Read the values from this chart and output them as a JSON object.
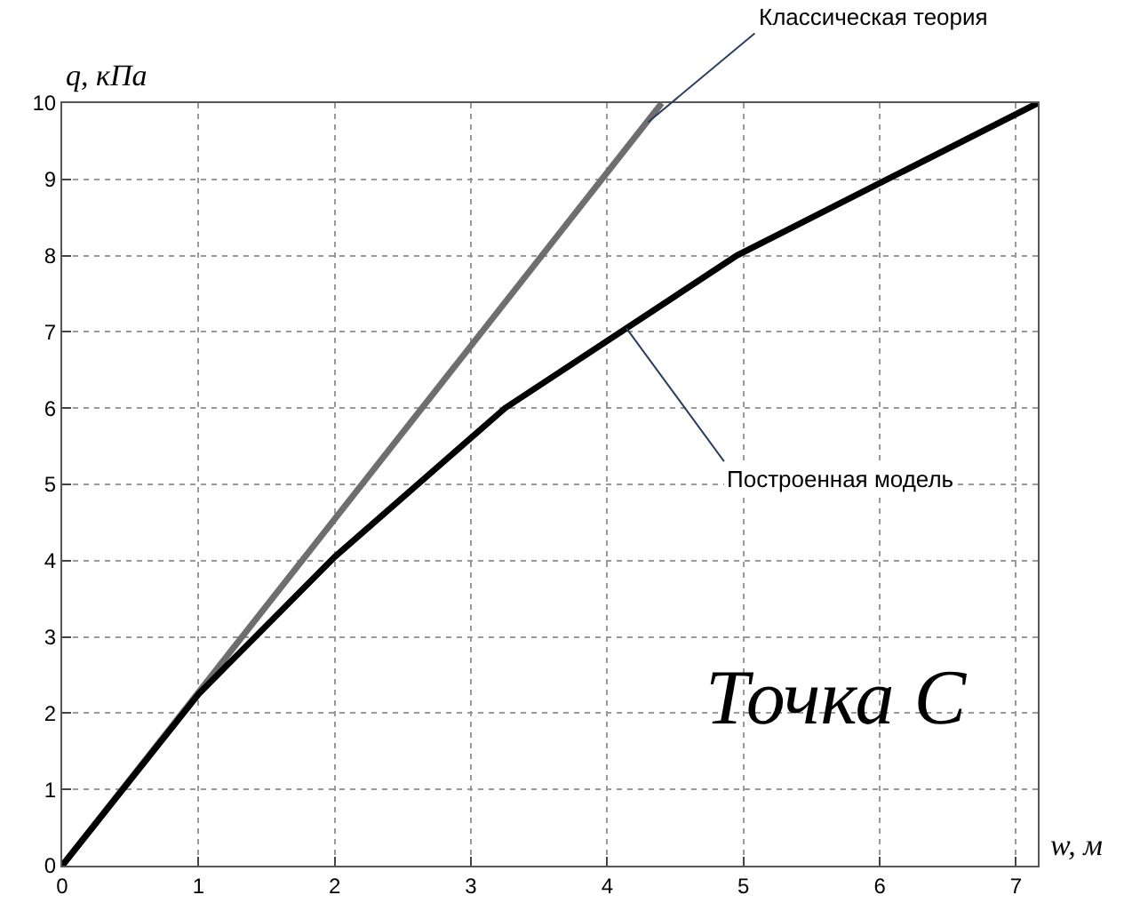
{
  "chart_data": {
    "type": "line",
    "xlabel": "w, м",
    "ylabel": "q, кПа",
    "xlim": [
      0,
      7.16
    ],
    "ylim": [
      0,
      10
    ],
    "xticks": [
      0,
      1,
      2,
      3,
      4,
      5,
      6,
      7
    ],
    "yticks": [
      0,
      1,
      2,
      3,
      4,
      5,
      6,
      7,
      8,
      9,
      10
    ],
    "grid": true,
    "marker": "none",
    "line_style": "solid",
    "series": [
      {
        "color": "#6e6e6e",
        "x": [
          0,
          4.4
        ],
        "values": [
          0,
          10
        ]
      },
      {
        "color": "#000000",
        "x": [
          0,
          1,
          2,
          3.25,
          4.95,
          7.16
        ],
        "values": [
          0,
          2.25,
          4.05,
          6,
          8,
          10
        ]
      }
    ],
    "annotations": [
      {
        "text": "Классическая теория",
        "x": 4.3,
        "y": 9.75
      },
      {
        "text": "Построенная модель",
        "x": 4.14,
        "y": 7.05
      },
      "Точка С"
    ]
  }
}
